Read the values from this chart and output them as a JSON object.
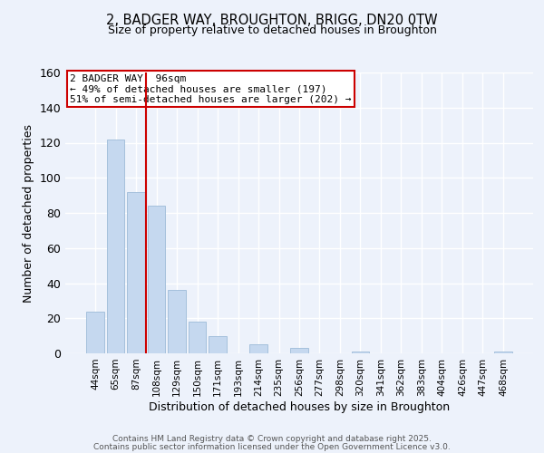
{
  "title_line1": "2, BADGER WAY, BROUGHTON, BRIGG, DN20 0TW",
  "title_line2": "Size of property relative to detached houses in Broughton",
  "xlabel": "Distribution of detached houses by size in Broughton",
  "ylabel": "Number of detached properties",
  "categories": [
    "44sqm",
    "65sqm",
    "87sqm",
    "108sqm",
    "129sqm",
    "150sqm",
    "171sqm",
    "193sqm",
    "214sqm",
    "235sqm",
    "256sqm",
    "277sqm",
    "298sqm",
    "320sqm",
    "341sqm",
    "362sqm",
    "383sqm",
    "404sqm",
    "426sqm",
    "447sqm",
    "468sqm"
  ],
  "values": [
    24,
    122,
    92,
    84,
    36,
    18,
    10,
    0,
    5,
    0,
    3,
    0,
    0,
    1,
    0,
    0,
    0,
    0,
    0,
    0,
    1
  ],
  "bar_color": "#c5d8ef",
  "bar_edge_color": "#9dbbd8",
  "vline_color": "#cc0000",
  "annotation_title": "2 BADGER WAY: 96sqm",
  "annotation_line1": "← 49% of detached houses are smaller (197)",
  "annotation_line2": "51% of semi-detached houses are larger (202) →",
  "ylim": [
    0,
    160
  ],
  "yticks": [
    0,
    20,
    40,
    60,
    80,
    100,
    120,
    140,
    160
  ],
  "footer_line1": "Contains HM Land Registry data © Crown copyright and database right 2025.",
  "footer_line2": "Contains public sector information licensed under the Open Government Licence v3.0.",
  "bg_color": "#edf2fb",
  "grid_color": "#ffffff"
}
